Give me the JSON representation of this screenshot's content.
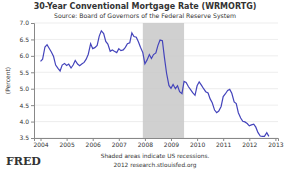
{
  "chart_data": {
    "type": "line",
    "title": "30-Year Conventional Mortgage Rate (WRMORTG)",
    "subtitle": "Source: Board of Governors of the Federal Reserve System",
    "ylabel": "(Percent)",
    "annotations": [
      "Shaded areas indicate US recessions.",
      "2012 research.stlouisfed.org"
    ],
    "logo": "FRED",
    "color": "#4444bb",
    "recession": {
      "start": 2007.92,
      "end": 2009.5,
      "color": "#c8c8c8"
    },
    "grid": true,
    "xlim": [
      2003.75,
      2013.1
    ],
    "xticks": [
      2004,
      2005,
      2006,
      2007,
      2008,
      2009,
      2010,
      2011,
      2012,
      2013
    ],
    "ylim": [
      3.5,
      7.0
    ],
    "yticks": [
      3.5,
      {
        "value": 4.0,
        "label": "4.0"
      },
      {
        "value": 4.5,
        "label": "4.5"
      },
      {
        "value": 5.0,
        "label": "5.0"
      },
      {
        "value": 5.5,
        "label": "5.5"
      },
      {
        "value": 6.0,
        "label": "6.0"
      },
      {
        "value": 6.5,
        "label": "6.5"
      },
      {
        "value": 7.0,
        "label": "7.0"
      }
    ],
    "x": [
      2004.0,
      2004.08,
      2004.17,
      2004.25,
      2004.33,
      2004.42,
      2004.5,
      2004.58,
      2004.67,
      2004.75,
      2004.83,
      2004.92,
      2005.0,
      2005.08,
      2005.17,
      2005.25,
      2005.33,
      2005.42,
      2005.5,
      2005.58,
      2005.67,
      2005.75,
      2005.83,
      2005.92,
      2006.0,
      2006.08,
      2006.17,
      2006.25,
      2006.33,
      2006.42,
      2006.5,
      2006.58,
      2006.67,
      2006.75,
      2006.83,
      2006.92,
      2007.0,
      2007.08,
      2007.17,
      2007.25,
      2007.33,
      2007.42,
      2007.5,
      2007.58,
      2007.67,
      2007.75,
      2007.83,
      2007.92,
      2008.0,
      2008.08,
      2008.17,
      2008.25,
      2008.33,
      2008.42,
      2008.5,
      2008.58,
      2008.67,
      2008.75,
      2008.83,
      2008.92,
      2009.0,
      2009.08,
      2009.17,
      2009.25,
      2009.33,
      2009.42,
      2009.5,
      2009.58,
      2009.67,
      2009.75,
      2009.83,
      2009.92,
      2010.0,
      2010.08,
      2010.17,
      2010.25,
      2010.33,
      2010.42,
      2010.5,
      2010.58,
      2010.67,
      2010.75,
      2010.83,
      2010.92,
      2011.0,
      2011.08,
      2011.17,
      2011.25,
      2011.33,
      2011.42,
      2011.5,
      2011.58,
      2011.67,
      2011.75,
      2011.83,
      2011.92,
      2012.0,
      2012.08,
      2012.17,
      2012.25,
      2012.33,
      2012.42,
      2012.5,
      2012.58,
      2012.67,
      2012.75
    ],
    "values": [
      5.83,
      5.9,
      6.27,
      6.34,
      6.23,
      6.11,
      5.98,
      5.72,
      5.62,
      5.54,
      5.72,
      5.77,
      5.71,
      5.75,
      5.63,
      5.72,
      5.86,
      5.75,
      5.7,
      5.75,
      5.8,
      5.9,
      6.05,
      6.37,
      6.22,
      6.25,
      6.32,
      6.6,
      6.76,
      6.68,
      6.44,
      6.36,
      6.14,
      6.18,
      6.14,
      6.1,
      6.22,
      6.16,
      6.18,
      6.26,
      6.37,
      6.4,
      6.7,
      6.59,
      6.57,
      6.43,
      6.26,
      6.1,
      5.76,
      5.87,
      6.04,
      5.92,
      6.04,
      6.09,
      6.32,
      6.48,
      6.46,
      5.94,
      5.47,
      5.1,
      5.01,
      5.13,
      5.0,
      5.09,
      4.91,
      4.85,
      5.22,
      5.19,
      5.06,
      4.97,
      4.88,
      4.8,
      5.09,
      5.21,
      5.1,
      5.0,
      4.91,
      4.87,
      4.69,
      4.57,
      4.35,
      4.27,
      4.32,
      4.46,
      4.76,
      4.84,
      4.95,
      4.98,
      4.86,
      4.6,
      4.55,
      4.27,
      4.11,
      4.01,
      3.99,
      3.94,
      3.87,
      3.9,
      3.92,
      3.83,
      3.67,
      3.56,
      3.55,
      3.55,
      3.66,
      3.55
    ]
  }
}
